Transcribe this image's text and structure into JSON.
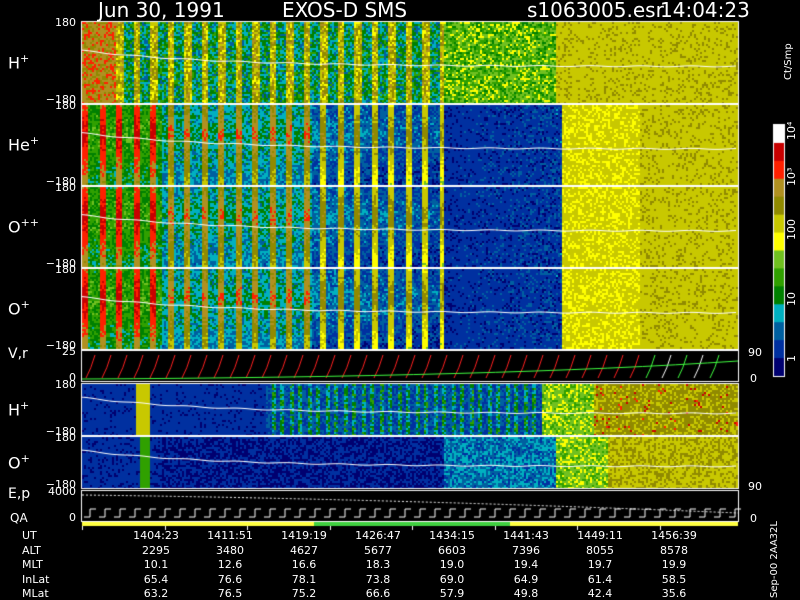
{
  "header": {
    "date": "Jun 30, 1991",
    "instrument": "EXOS-D SMS",
    "file": "s1063005.esr",
    "time": "14:04:23"
  },
  "colorbar": {
    "unit": "Ct/Smp",
    "tick_labels": [
      "10⁴",
      "10³",
      "100",
      "10",
      "1"
    ],
    "colors": [
      "#ffffff",
      "#c80000",
      "#ff2000",
      "#b09020",
      "#908a00",
      "#c8c800",
      "#ffff00",
      "#70c020",
      "#30a000",
      "#008000",
      "#00b0c0",
      "#0060a0",
      "#0030a0",
      "#000070"
    ]
  },
  "panels": [
    {
      "label": "H",
      "sup": "+",
      "ymax": "180",
      "ymin": "−180"
    },
    {
      "label": "He",
      "sup": "+",
      "ymax": "180",
      "ymin": "−180"
    },
    {
      "label": "O",
      "sup": "++",
      "ymax": "180",
      "ymin": "−180"
    },
    {
      "label": "O",
      "sup": "+",
      "ymax": "180",
      "ymin": "−180"
    },
    {
      "label": "V,r",
      "sup": "",
      "ymax": "25",
      "ymin": "0",
      "right_top": "90",
      "right_bottom": "0"
    },
    {
      "label": "H",
      "sup": "+",
      "ymax": "180",
      "ymin": "−180"
    },
    {
      "label": "O",
      "sup": "+",
      "ymax": "180",
      "ymin": "−180",
      "right_top": "90"
    },
    {
      "label": "E,p",
      "sup": "",
      "ymax": "4000",
      "ymin": "0",
      "right_bottom": "0"
    }
  ],
  "qa_label": "QA",
  "footer_note": "Sep-00  2AA32L",
  "chart_data": {
    "type": "heatmap",
    "x_axis": "UT",
    "times": [
      "1404:23",
      "1411:51",
      "1419:19",
      "1426:47",
      "1434:15",
      "1441:43",
      "1449:11",
      "1456:39"
    ],
    "rows": [
      {
        "name": "UT",
        "values": [
          "1404:23",
          "1411:51",
          "1419:19",
          "1426:47",
          "1434:15",
          "1441:43",
          "1449:11",
          "1456:39"
        ]
      },
      {
        "name": "ALT",
        "values": [
          "2295",
          "3480",
          "4627",
          "5677",
          "6603",
          "7396",
          "8055",
          "8578"
        ]
      },
      {
        "name": "MLT",
        "values": [
          "10.1",
          "12.6",
          "16.6",
          "18.3",
          "19.0",
          "19.4",
          "19.7",
          "19.9"
        ]
      },
      {
        "name": "InLat",
        "values": [
          "65.4",
          "76.6",
          "78.1",
          "73.8",
          "69.0",
          "64.9",
          "61.4",
          "58.5"
        ]
      },
      {
        "name": "MLat",
        "values": [
          "63.2",
          "76.5",
          "75.2",
          "66.6",
          "57.9",
          "49.8",
          "42.4",
          "35.6"
        ]
      }
    ]
  }
}
